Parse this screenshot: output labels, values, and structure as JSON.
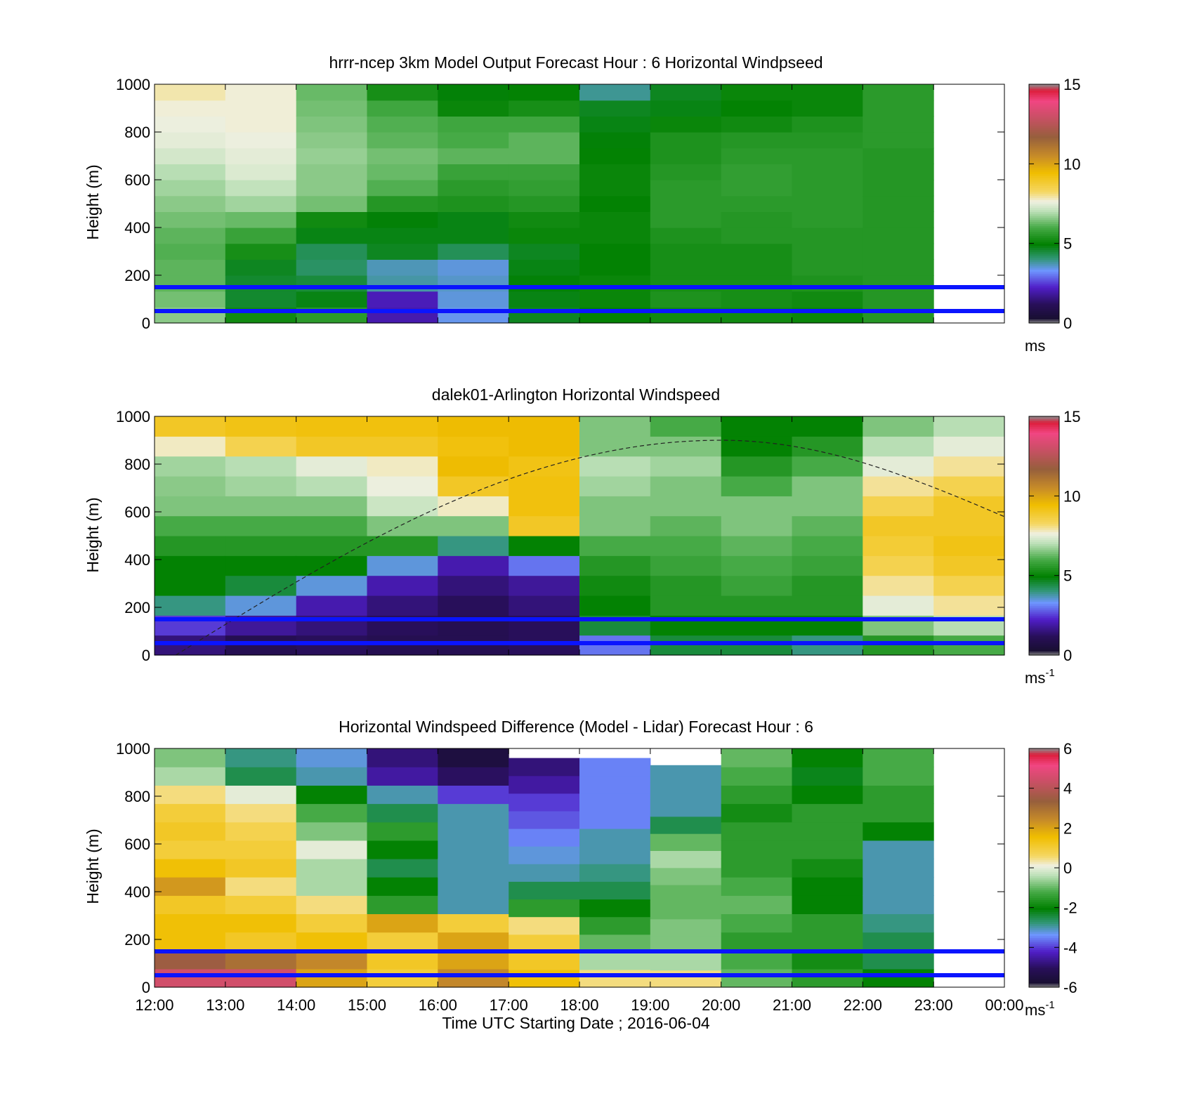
{
  "chart_data": [
    {
      "type": "heatmap",
      "title": "hrrr-ncep 3km Model Output   Forecast Hour : 6 Horizontal Windpseed",
      "ylabel": "Height (m)",
      "ylim": [
        0,
        1000
      ],
      "yticks": [
        "0",
        "200",
        "400",
        "600",
        "800",
        "1000"
      ],
      "colorbar": {
        "min": 0,
        "max": 15,
        "ticks": [
          "0",
          "5",
          "10",
          "15"
        ],
        "unit": "ms",
        "unit_sup": ""
      },
      "hlines": [
        50,
        150
      ],
      "grid": false,
      "x_hours": [
        12,
        13,
        14,
        15,
        16,
        17,
        18,
        19,
        20,
        21,
        22
      ],
      "columns": [
        [
          6.6,
          6.4,
          6.2,
          6.2,
          6.1,
          6.2,
          6.4,
          6.6,
          6.8,
          7.0,
          7.3,
          7.5,
          7.6,
          7.7,
          7.9
        ],
        [
          5.2,
          4.6,
          4.6,
          4.7,
          5.3,
          5.8,
          6.3,
          6.8,
          7.1,
          7.4,
          7.5,
          7.6,
          7.7,
          7.7,
          7.7
        ],
        [
          5.6,
          4.8,
          4.5,
          4.2,
          4.3,
          4.8,
          5.2,
          6.4,
          6.6,
          6.6,
          6.7,
          6.6,
          6.5,
          6.4,
          6.3
        ],
        [
          2.0,
          2.1,
          3.8,
          3.7,
          4.7,
          4.8,
          4.9,
          5.5,
          6.1,
          6.3,
          6.4,
          6.2,
          6.1,
          5.9,
          5.3
        ],
        [
          3.4,
          3.5,
          3.6,
          3.5,
          4.3,
          4.8,
          4.8,
          5.4,
          5.6,
          5.8,
          6.2,
          6.0,
          5.9,
          5.1,
          4.9
        ],
        [
          4.7,
          4.8,
          4.9,
          4.8,
          4.7,
          5.1,
          5.2,
          5.5,
          5.7,
          5.8,
          6.2,
          6.2,
          5.9,
          5.3,
          5.0
        ],
        [
          5.0,
          5.1,
          5.1,
          5.0,
          5.0,
          5.1,
          5.1,
          5.0,
          5.1,
          5.1,
          5.0,
          4.9,
          4.8,
          4.7,
          3.9
        ],
        [
          5.2,
          5.4,
          5.3,
          5.3,
          5.3,
          5.4,
          5.6,
          5.6,
          5.6,
          5.5,
          5.4,
          5.4,
          5.1,
          4.8,
          4.7
        ],
        [
          5.2,
          5.3,
          5.3,
          5.3,
          5.3,
          5.5,
          5.5,
          5.6,
          5.7,
          5.7,
          5.6,
          5.5,
          5.2,
          5.0,
          5.1
        ],
        [
          5.1,
          5.2,
          5.4,
          5.5,
          5.5,
          5.5,
          5.6,
          5.6,
          5.6,
          5.6,
          5.6,
          5.5,
          5.4,
          5.1,
          5.1
        ],
        [
          5.5,
          5.5,
          5.5,
          5.5,
          5.5,
          5.5,
          5.5,
          5.5,
          5.5,
          5.5,
          5.5,
          5.6,
          5.6,
          5.6,
          5.6
        ]
      ]
    },
    {
      "type": "heatmap",
      "title": "dalek01-Arlington  Horizontal Windspeed",
      "ylabel": "Height (m)",
      "ylim": [
        0,
        1000
      ],
      "yticks": [
        "0",
        "200",
        "400",
        "600",
        "800",
        "1000"
      ],
      "colorbar": {
        "min": 0,
        "max": 15,
        "ticks": [
          "0",
          "5",
          "10",
          "15"
        ],
        "unit": "ms",
        "unit_sup": "-1"
      },
      "hlines": [
        50,
        150
      ],
      "grid": false,
      "x_hours": [
        12,
        13,
        14,
        15,
        16,
        17,
        18,
        19,
        20,
        21,
        22,
        23
      ],
      "columns": [
        [
          1.5,
          2.5,
          4.0,
          5.0,
          5.0,
          5.5,
          6.0,
          6.5,
          6.6,
          6.8,
          7.8,
          9.0
        ],
        [
          1.0,
          1.8,
          3.5,
          4.5,
          5.0,
          5.5,
          6.0,
          6.5,
          6.8,
          7.0,
          8.5,
          9.2
        ],
        [
          1.2,
          1.5,
          2.0,
          3.5,
          5.0,
          5.5,
          6.0,
          6.5,
          7.0,
          7.5,
          9.0,
          9.3
        ],
        [
          1.0,
          1.2,
          1.5,
          2.0,
          3.5,
          5.5,
          6.5,
          7.2,
          7.6,
          7.8,
          9.0,
          9.3
        ],
        [
          1.0,
          1.0,
          1.2,
          1.5,
          2.0,
          4.0,
          6.5,
          7.8,
          9.0,
          9.5,
          9.3,
          9.5
        ],
        [
          1.2,
          1.2,
          1.5,
          1.8,
          3.0,
          5.0,
          9.0,
          9.3,
          9.3,
          9.2,
          9.5,
          9.5
        ],
        [
          3.0,
          4.5,
          5.0,
          5.2,
          5.5,
          6.0,
          6.5,
          6.5,
          6.8,
          7.0,
          6.5,
          6.5
        ],
        [
          4.5,
          5.0,
          5.5,
          5.5,
          5.8,
          6.0,
          6.2,
          6.5,
          6.5,
          6.8,
          6.5,
          6.0
        ],
        [
          4.5,
          5.0,
          5.5,
          5.8,
          6.0,
          6.2,
          6.5,
          6.5,
          6.0,
          5.5,
          5.0,
          5.0
        ],
        [
          4.0,
          5.0,
          5.5,
          5.5,
          5.8,
          6.0,
          6.2,
          6.5,
          6.5,
          6.0,
          5.5,
          5.0
        ],
        [
          5.5,
          6.5,
          7.5,
          8.0,
          8.5,
          8.8,
          9.0,
          8.5,
          8.0,
          7.5,
          7.0,
          6.5
        ],
        [
          6.0,
          7.0,
          8.0,
          8.5,
          9.0,
          9.2,
          9.0,
          9.0,
          8.5,
          8.0,
          7.5,
          7.0
        ]
      ],
      "boundary_layer_curve": {
        "x_hours": [
          12.3,
          20.0,
          24.0
        ],
        "heights_m": [
          0,
          900,
          580
        ]
      }
    },
    {
      "type": "heatmap",
      "title": "Horizontal Windspeed Difference (Model - Lidar) Forecast Hour : 6",
      "xlabel": "Time UTC  Starting Date ; 2016-06-04",
      "ylabel": "Height (m)",
      "ylim": [
        0,
        1000
      ],
      "yticks": [
        "0",
        "200",
        "400",
        "600",
        "800",
        "1000"
      ],
      "xticks": [
        "12:00",
        "13:00",
        "14:00",
        "15:00",
        "16:00",
        "17:00",
        "18:00",
        "19:00",
        "20:00",
        "21:00",
        "22:00",
        "23:00",
        "00:00"
      ],
      "colorbar": {
        "min": -6,
        "max": 6,
        "ticks": [
          "-6",
          "-4",
          "-2",
          "0",
          "2",
          "4",
          "6"
        ],
        "unit": "ms",
        "unit_sup": "-1"
      },
      "hlines": [
        50,
        150
      ],
      "grid": false,
      "x_hours": [
        12,
        13,
        14,
        15,
        16,
        17,
        18,
        19,
        20,
        21,
        22
      ],
      "top_m": [
        1000,
        1000,
        1000,
        1000,
        1000,
        960,
        960,
        930,
        1000,
        1000,
        1000
      ],
      "columns": [
        [
          4.5,
          3.5,
          1.5,
          1.5,
          1.2,
          2.2,
          1.5,
          1.0,
          1.2,
          1.0,
          0.5,
          -0.5,
          -0.8
        ],
        [
          4.5,
          3.0,
          1.2,
          1.5,
          1.0,
          0.5,
          1.2,
          1.0,
          0.8,
          0.5,
          0.0,
          -2.5,
          -2.8
        ],
        [
          2.0,
          2.5,
          1.5,
          1.0,
          0.5,
          -0.5,
          -0.5,
          0.0,
          -0.8,
          -1.2,
          -2.0,
          -3.0,
          -3.2
        ],
        [
          1.0,
          1.2,
          1.0,
          2.0,
          -1.5,
          -2.0,
          -2.5,
          -2.0,
          -1.5,
          -2.5,
          -3.0,
          -4.5,
          -4.8
        ],
        [
          2.5,
          2.0,
          2.0,
          1.0,
          -3.0,
          -3.0,
          -3.0,
          -3.0,
          -3.0,
          -3.0,
          -4.0,
          -5.0,
          -5.5
        ],
        [
          1.5,
          1.2,
          1.0,
          0.5,
          -1.5,
          -2.5,
          -3.0,
          -3.2,
          -3.5,
          -3.8,
          -4.0,
          -4.5,
          -4.8
        ],
        [
          0.5,
          -0.5,
          -1.0,
          -1.5,
          -2.0,
          -2.5,
          -2.8,
          -3.0,
          -3.0,
          -3.5,
          -3.5,
          -3.5,
          -3.5
        ],
        [
          0.5,
          -0.5,
          -0.8,
          -0.8,
          -1.0,
          -1.0,
          -0.8,
          -0.5,
          -1.0,
          -2.5,
          -3.0,
          -3.0,
          -3.0
        ],
        [
          -1.0,
          -1.2,
          -1.5,
          -1.2,
          -1.0,
          -1.2,
          -1.5,
          -1.5,
          -1.5,
          -1.8,
          -1.5,
          -1.2,
          -1.0
        ],
        [
          -1.5,
          -1.8,
          -1.5,
          -1.5,
          -2.0,
          -2.0,
          -1.8,
          -1.5,
          -1.5,
          -1.5,
          -2.0,
          -2.2,
          -2.0
        ],
        [
          -2.0,
          -2.5,
          -2.5,
          -2.8,
          -3.0,
          -3.0,
          -3.0,
          -3.0,
          -2.0,
          -1.5,
          -1.5,
          -1.2,
          -1.2
        ]
      ]
    }
  ]
}
